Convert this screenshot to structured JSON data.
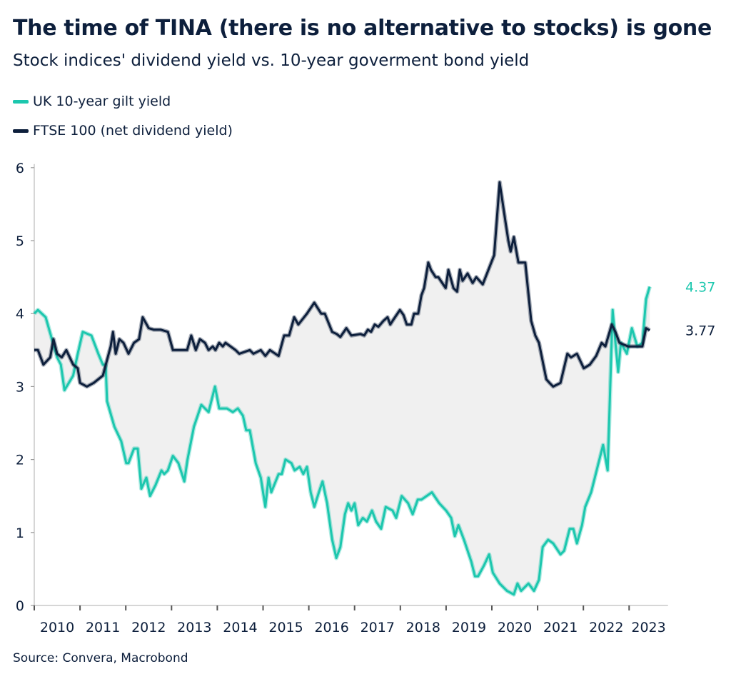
{
  "title": "The time of TINA (there is no alternative to stocks) is gone",
  "subtitle": "Stock indices' dividend yield vs. 10-year goverment bond yield",
  "source": "Source: Convera, Macrobond",
  "chart_data": {
    "type": "line",
    "title": "The time of TINA (there is no alternative to stocks) is gone",
    "subtitle": "Stock indices' dividend yield vs. 10-year goverment bond yield",
    "xlim": [
      2010,
      2023.85
    ],
    "ylim": [
      0,
      6
    ],
    "y_ticks": [
      "0",
      "1",
      "2",
      "3",
      "4",
      "5",
      "6"
    ],
    "x_ticks": [
      "2010",
      "2011",
      "2012",
      "2013",
      "2014",
      "2015",
      "2016",
      "2017",
      "2018",
      "2019",
      "2020",
      "2021",
      "2022",
      "2023"
    ],
    "grid": false,
    "legend": "top-left",
    "fill_between": true,
    "fill_color": "#f0f0f0",
    "series": [
      {
        "name": "UK 10-year gilt yield",
        "color": "#1cc7ae",
        "last_label": "4.37",
        "points": [
          [
            2010.0,
            4.0
          ],
          [
            2010.08,
            4.05
          ],
          [
            2010.25,
            3.95
          ],
          [
            2010.5,
            3.4
          ],
          [
            2010.58,
            3.3
          ],
          [
            2010.66,
            2.95
          ],
          [
            2010.85,
            3.15
          ],
          [
            2010.95,
            3.45
          ],
          [
            2011.06,
            3.75
          ],
          [
            2011.25,
            3.7
          ],
          [
            2011.4,
            3.45
          ],
          [
            2011.5,
            3.3
          ],
          [
            2011.56,
            3.3
          ],
          [
            2011.59,
            2.8
          ],
          [
            2011.75,
            2.45
          ],
          [
            2011.9,
            2.25
          ],
          [
            2012.01,
            1.95
          ],
          [
            2012.06,
            1.95
          ],
          [
            2012.18,
            2.15
          ],
          [
            2012.26,
            2.15
          ],
          [
            2012.34,
            1.6
          ],
          [
            2012.45,
            1.75
          ],
          [
            2012.53,
            1.5
          ],
          [
            2012.65,
            1.65
          ],
          [
            2012.78,
            1.85
          ],
          [
            2012.84,
            1.8
          ],
          [
            2012.92,
            1.85
          ],
          [
            2013.03,
            2.05
          ],
          [
            2013.15,
            1.95
          ],
          [
            2013.28,
            1.7
          ],
          [
            2013.35,
            2.0
          ],
          [
            2013.49,
            2.45
          ],
          [
            2013.65,
            2.75
          ],
          [
            2013.81,
            2.65
          ],
          [
            2013.95,
            3.0
          ],
          [
            2014.04,
            2.7
          ],
          [
            2014.21,
            2.7
          ],
          [
            2014.34,
            2.65
          ],
          [
            2014.45,
            2.7
          ],
          [
            2014.56,
            2.6
          ],
          [
            2014.63,
            2.4
          ],
          [
            2014.71,
            2.4
          ],
          [
            2014.84,
            1.95
          ],
          [
            2014.95,
            1.75
          ],
          [
            2015.05,
            1.35
          ],
          [
            2015.12,
            1.75
          ],
          [
            2015.18,
            1.55
          ],
          [
            2015.34,
            1.8
          ],
          [
            2015.41,
            1.8
          ],
          [
            2015.49,
            2.0
          ],
          [
            2015.62,
            1.95
          ],
          [
            2015.69,
            1.85
          ],
          [
            2015.8,
            1.9
          ],
          [
            2015.88,
            1.8
          ],
          [
            2015.96,
            1.9
          ],
          [
            2016.04,
            1.55
          ],
          [
            2016.12,
            1.35
          ],
          [
            2016.22,
            1.55
          ],
          [
            2016.3,
            1.7
          ],
          [
            2016.4,
            1.4
          ],
          [
            2016.51,
            0.9
          ],
          [
            2016.6,
            0.65
          ],
          [
            2016.69,
            0.8
          ],
          [
            2016.79,
            1.25
          ],
          [
            2016.86,
            1.4
          ],
          [
            2016.93,
            1.3
          ],
          [
            2017.0,
            1.4
          ],
          [
            2017.08,
            1.1
          ],
          [
            2017.18,
            1.2
          ],
          [
            2017.27,
            1.15
          ],
          [
            2017.38,
            1.3
          ],
          [
            2017.47,
            1.15
          ],
          [
            2017.58,
            1.05
          ],
          [
            2017.68,
            1.35
          ],
          [
            2017.83,
            1.3
          ],
          [
            2017.91,
            1.2
          ],
          [
            2018.03,
            1.5
          ],
          [
            2018.17,
            1.4
          ],
          [
            2018.27,
            1.25
          ],
          [
            2018.38,
            1.45
          ],
          [
            2018.46,
            1.45
          ],
          [
            2018.69,
            1.55
          ],
          [
            2018.85,
            1.4
          ],
          [
            2019.0,
            1.3
          ],
          [
            2019.11,
            1.2
          ],
          [
            2019.19,
            0.95
          ],
          [
            2019.27,
            1.1
          ],
          [
            2019.39,
            0.9
          ],
          [
            2019.55,
            0.6
          ],
          [
            2019.63,
            0.4
          ],
          [
            2019.7,
            0.4
          ],
          [
            2019.83,
            0.55
          ],
          [
            2019.94,
            0.7
          ],
          [
            2020.02,
            0.45
          ],
          [
            2020.17,
            0.3
          ],
          [
            2020.33,
            0.2
          ],
          [
            2020.48,
            0.15
          ],
          [
            2020.56,
            0.3
          ],
          [
            2020.64,
            0.2
          ],
          [
            2020.8,
            0.3
          ],
          [
            2020.92,
            0.2
          ],
          [
            2021.03,
            0.35
          ],
          [
            2021.11,
            0.8
          ],
          [
            2021.23,
            0.9
          ],
          [
            2021.34,
            0.85
          ],
          [
            2021.5,
            0.7
          ],
          [
            2021.58,
            0.75
          ],
          [
            2021.7,
            1.05
          ],
          [
            2021.78,
            1.05
          ],
          [
            2021.86,
            0.85
          ],
          [
            2021.97,
            1.1
          ],
          [
            2022.04,
            1.35
          ],
          [
            2022.17,
            1.55
          ],
          [
            2022.31,
            1.9
          ],
          [
            2022.43,
            2.2
          ],
          [
            2022.53,
            1.85
          ],
          [
            2022.64,
            4.05
          ],
          [
            2022.7,
            3.6
          ],
          [
            2022.76,
            3.2
          ],
          [
            2022.82,
            3.6
          ],
          [
            2022.95,
            3.45
          ],
          [
            2023.06,
            3.8
          ],
          [
            2023.18,
            3.55
          ],
          [
            2023.29,
            3.6
          ],
          [
            2023.37,
            4.2
          ],
          [
            2023.45,
            4.37
          ]
        ]
      },
      {
        "name": "FTSE 100 (net dividend yield)",
        "color": "#0d1f3c",
        "last_label": "3.77",
        "points": [
          [
            2010.0,
            3.5
          ],
          [
            2010.08,
            3.5
          ],
          [
            2010.2,
            3.3
          ],
          [
            2010.35,
            3.4
          ],
          [
            2010.42,
            3.65
          ],
          [
            2010.5,
            3.45
          ],
          [
            2010.6,
            3.4
          ],
          [
            2010.7,
            3.5
          ],
          [
            2010.85,
            3.3
          ],
          [
            2010.95,
            3.25
          ],
          [
            2011.0,
            3.05
          ],
          [
            2011.15,
            3.0
          ],
          [
            2011.3,
            3.05
          ],
          [
            2011.4,
            3.1
          ],
          [
            2011.5,
            3.15
          ],
          [
            2011.67,
            3.55
          ],
          [
            2011.72,
            3.75
          ],
          [
            2011.78,
            3.45
          ],
          [
            2011.86,
            3.65
          ],
          [
            2011.95,
            3.6
          ],
          [
            2012.06,
            3.45
          ],
          [
            2012.18,
            3.6
          ],
          [
            2012.29,
            3.65
          ],
          [
            2012.37,
            3.95
          ],
          [
            2012.5,
            3.8
          ],
          [
            2012.61,
            3.78
          ],
          [
            2012.76,
            3.78
          ],
          [
            2012.92,
            3.75
          ],
          [
            2013.03,
            3.5
          ],
          [
            2013.23,
            3.5
          ],
          [
            2013.34,
            3.5
          ],
          [
            2013.43,
            3.7
          ],
          [
            2013.53,
            3.5
          ],
          [
            2013.62,
            3.65
          ],
          [
            2013.73,
            3.6
          ],
          [
            2013.81,
            3.5
          ],
          [
            2013.9,
            3.55
          ],
          [
            2013.96,
            3.5
          ],
          [
            2014.04,
            3.6
          ],
          [
            2014.12,
            3.55
          ],
          [
            2014.18,
            3.6
          ],
          [
            2014.4,
            3.5
          ],
          [
            2014.48,
            3.45
          ],
          [
            2014.71,
            3.5
          ],
          [
            2014.79,
            3.45
          ],
          [
            2014.95,
            3.5
          ],
          [
            2015.05,
            3.42
          ],
          [
            2015.15,
            3.5
          ],
          [
            2015.34,
            3.42
          ],
          [
            2015.46,
            3.7
          ],
          [
            2015.57,
            3.7
          ],
          [
            2015.68,
            3.95
          ],
          [
            2015.77,
            3.85
          ],
          [
            2015.96,
            4.0
          ],
          [
            2016.12,
            4.15
          ],
          [
            2016.27,
            4.0
          ],
          [
            2016.35,
            4.0
          ],
          [
            2016.51,
            3.75
          ],
          [
            2016.61,
            3.72
          ],
          [
            2016.69,
            3.68
          ],
          [
            2016.82,
            3.8
          ],
          [
            2016.93,
            3.7
          ],
          [
            2017.13,
            3.72
          ],
          [
            2017.21,
            3.7
          ],
          [
            2017.29,
            3.78
          ],
          [
            2017.36,
            3.75
          ],
          [
            2017.44,
            3.85
          ],
          [
            2017.52,
            3.82
          ],
          [
            2017.63,
            3.9
          ],
          [
            2017.72,
            3.95
          ],
          [
            2017.78,
            3.85
          ],
          [
            2017.83,
            3.9
          ],
          [
            2017.99,
            4.05
          ],
          [
            2018.07,
            3.98
          ],
          [
            2018.14,
            3.85
          ],
          [
            2018.24,
            3.85
          ],
          [
            2018.3,
            4.0
          ],
          [
            2018.39,
            4.0
          ],
          [
            2018.46,
            4.25
          ],
          [
            2018.52,
            4.35
          ],
          [
            2018.61,
            4.7
          ],
          [
            2018.67,
            4.6
          ],
          [
            2018.77,
            4.5
          ],
          [
            2018.83,
            4.5
          ],
          [
            2018.99,
            4.35
          ],
          [
            2019.05,
            4.6
          ],
          [
            2019.16,
            4.35
          ],
          [
            2019.24,
            4.3
          ],
          [
            2019.3,
            4.6
          ],
          [
            2019.36,
            4.45
          ],
          [
            2019.47,
            4.55
          ],
          [
            2019.58,
            4.42
          ],
          [
            2019.66,
            4.5
          ],
          [
            2019.8,
            4.4
          ],
          [
            2020.05,
            4.8
          ],
          [
            2020.17,
            5.8
          ],
          [
            2020.3,
            5.25
          ],
          [
            2020.36,
            5.0
          ],
          [
            2020.41,
            4.85
          ],
          [
            2020.48,
            5.05
          ],
          [
            2020.58,
            4.7
          ],
          [
            2020.73,
            4.7
          ],
          [
            2020.86,
            3.9
          ],
          [
            2020.95,
            3.7
          ],
          [
            2021.03,
            3.6
          ],
          [
            2021.19,
            3.1
          ],
          [
            2021.26,
            3.05
          ],
          [
            2021.34,
            3.0
          ],
          [
            2021.5,
            3.05
          ],
          [
            2021.65,
            3.45
          ],
          [
            2021.73,
            3.4
          ],
          [
            2021.86,
            3.45
          ],
          [
            2022.01,
            3.25
          ],
          [
            2022.14,
            3.3
          ],
          [
            2022.28,
            3.42
          ],
          [
            2022.4,
            3.6
          ],
          [
            2022.48,
            3.55
          ],
          [
            2022.62,
            3.85
          ],
          [
            2022.7,
            3.75
          ],
          [
            2022.79,
            3.6
          ],
          [
            2022.98,
            3.55
          ],
          [
            2023.29,
            3.55
          ],
          [
            2023.37,
            3.8
          ],
          [
            2023.45,
            3.77
          ]
        ]
      }
    ]
  }
}
